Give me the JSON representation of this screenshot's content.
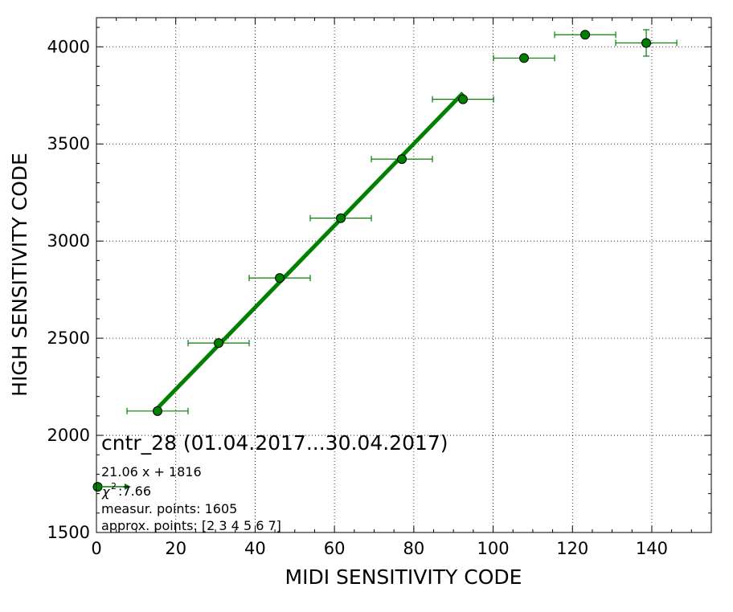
{
  "chart_data": {
    "type": "scatter",
    "title": "cntr_28 (01.04.2017...30.04.2017)",
    "xlabel": "MIDI SENSITIVITY CODE",
    "ylabel": "HIGH SENSITIVITY CODE",
    "xlim": [
      0,
      155
    ],
    "ylim": [
      1500,
      4150
    ],
    "xticks": [
      0,
      20,
      40,
      60,
      80,
      100,
      120,
      140
    ],
    "yticks": [
      1500,
      2000,
      2500,
      3000,
      3500,
      4000
    ],
    "grid": true,
    "colors": {
      "points": "#008000",
      "fit_line": "#008000",
      "marker_edge": "#000000"
    },
    "points": [
      {
        "x": 0.3,
        "y": 1735,
        "xerr": 0,
        "yerr": 0
      },
      {
        "x": 15.4,
        "y": 2125,
        "xerr": 7.7,
        "yerr": 0
      },
      {
        "x": 30.8,
        "y": 2475,
        "xerr": 7.7,
        "yerr": 0
      },
      {
        "x": 46.2,
        "y": 2810,
        "xerr": 7.7,
        "yerr": 0
      },
      {
        "x": 61.6,
        "y": 3118,
        "xerr": 7.7,
        "yerr": 0
      },
      {
        "x": 77.0,
        "y": 3422,
        "xerr": 7.7,
        "yerr": 0
      },
      {
        "x": 92.4,
        "y": 3730,
        "xerr": 7.7,
        "yerr": 0
      },
      {
        "x": 107.8,
        "y": 3942,
        "xerr": 7.7,
        "yerr": 0
      },
      {
        "x": 123.2,
        "y": 4062,
        "xerr": 7.7,
        "yerr": 0
      },
      {
        "x": 138.6,
        "y": 4020,
        "xerr": 7.7,
        "yerr": 68
      }
    ],
    "fit": {
      "slope": 21.06,
      "intercept": 1816,
      "x_range": [
        15.4,
        92.4
      ]
    },
    "annotations": {
      "equation": "21.06 x + 1816",
      "chi_symbol": "χ",
      "chi_power": "2",
      "chi_value": " :7.66",
      "measured_points": "measur. points: 1605",
      "approx_points": "approx. points: [2 3 4 5 6 7]"
    }
  }
}
